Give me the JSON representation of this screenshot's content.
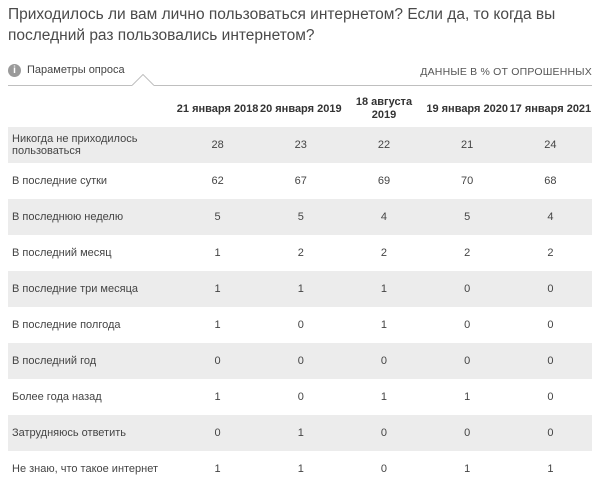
{
  "title": "Приходилось ли вам лично пользоваться интернетом? Если да, то когда вы последний раз пользовались интернетом?",
  "params": {
    "icon_char": "i",
    "label": "Параметры опроса",
    "units": "ДАННЫЕ В % ОТ ОПРОШЕННЫХ"
  },
  "table": {
    "headers": [
      "21 января 2018",
      "20 января 2019",
      "18 августа 2019",
      "19 января 2020",
      "17 января 2021"
    ],
    "rows": [
      {
        "label": "Никогда не приходилось пользоваться",
        "values": [
          "28",
          "23",
          "22",
          "21",
          "24"
        ]
      },
      {
        "label": "В последние сутки",
        "values": [
          "62",
          "67",
          "69",
          "70",
          "68"
        ]
      },
      {
        "label": "В последнюю неделю",
        "values": [
          "5",
          "5",
          "4",
          "5",
          "4"
        ]
      },
      {
        "label": "В последний месяц",
        "values": [
          "1",
          "2",
          "2",
          "2",
          "2"
        ]
      },
      {
        "label": "В последние три месяца",
        "values": [
          "1",
          "1",
          "1",
          "0",
          "0"
        ]
      },
      {
        "label": "В последние полгода",
        "values": [
          "1",
          "0",
          "1",
          "0",
          "0"
        ]
      },
      {
        "label": "В последний год",
        "values": [
          "0",
          "0",
          "0",
          "0",
          "0"
        ]
      },
      {
        "label": "Более года назад",
        "values": [
          "1",
          "0",
          "1",
          "1",
          "0"
        ]
      },
      {
        "label": "Затрудняюсь ответить",
        "values": [
          "0",
          "1",
          "0",
          "0",
          "0"
        ]
      },
      {
        "label": "Не знаю, что такое интернет",
        "values": [
          "1",
          "1",
          "0",
          "1",
          "1"
        ]
      }
    ]
  }
}
